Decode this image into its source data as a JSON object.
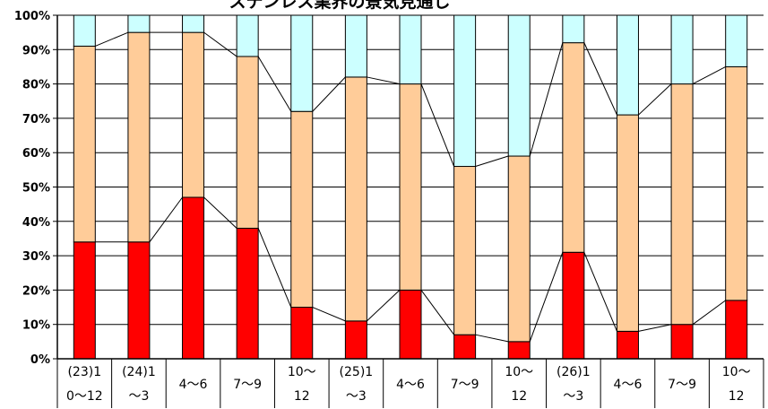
{
  "chart_data": {
    "type": "bar",
    "stacked": true,
    "normalized": true,
    "title": "ステンレス業界の景気見通し",
    "xlabel": "",
    "ylabel": "",
    "ylim": [
      0,
      100
    ],
    "yticks": [
      "0%",
      "10%",
      "20%",
      "30%",
      "40%",
      "50%",
      "60%",
      "70%",
      "80%",
      "90%",
      "100%"
    ],
    "grid": true,
    "legend": "none",
    "categories": [
      [
        "(23)1",
        "0～12"
      ],
      [
        "(24)1",
        "～3"
      ],
      [
        "4～6"
      ],
      [
        "7～9"
      ],
      [
        "10～",
        "12"
      ],
      [
        "(25)1",
        "～3"
      ],
      [
        "4～6"
      ],
      [
        "7～9"
      ],
      [
        "10～",
        "12"
      ],
      [
        "(26)1",
        "～3"
      ],
      [
        "4～6"
      ],
      [
        "7～9"
      ],
      [
        "10～",
        "12"
      ]
    ],
    "series": [
      {
        "color": "#FF0000",
        "values": [
          34,
          34,
          47,
          38,
          15,
          11,
          20,
          7,
          5,
          31,
          8,
          10,
          17
        ]
      },
      {
        "color": "#FFCC99",
        "values": [
          57,
          61,
          48,
          50,
          57,
          71,
          60,
          49,
          54,
          61,
          63,
          70,
          68
        ]
      },
      {
        "color": "#CCFFFF",
        "values": [
          9,
          5,
          5,
          12,
          28,
          18,
          20,
          44,
          41,
          8,
          29,
          20,
          15
        ]
      }
    ],
    "series_lines": true
  }
}
